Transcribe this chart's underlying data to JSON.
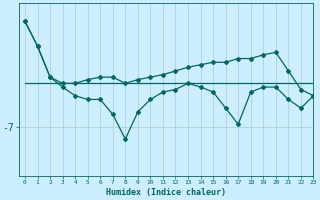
{
  "xlabel": "Humidex (Indice chaleur)",
  "background_color": "#cceeff",
  "line_color": "#006666",
  "grid_color": "#aacccc",
  "x": [
    0,
    1,
    2,
    3,
    4,
    5,
    6,
    7,
    8,
    9,
    10,
    11,
    12,
    13,
    14,
    15,
    16,
    17,
    18,
    19,
    20,
    21,
    22,
    23
  ],
  "y_oscillating": [
    1.5,
    -0.5,
    -3.0,
    -3.8,
    -4.5,
    -4.8,
    -4.8,
    -6.0,
    -8.0,
    -5.8,
    -4.8,
    -4.2,
    -4.0,
    -3.5,
    -3.8,
    -4.2,
    -5.5,
    -6.8,
    -4.2,
    -3.8,
    -3.8,
    -4.8,
    -5.5,
    -4.5
  ],
  "y_upper": [
    1.5,
    -0.5,
    -3.0,
    -3.5,
    -3.5,
    -3.2,
    -3.0,
    -3.0,
    -3.5,
    -3.2,
    -3.0,
    -2.8,
    -2.5,
    -2.2,
    -2.0,
    -1.8,
    -1.8,
    -1.5,
    -1.5,
    -1.2,
    -1.0,
    -2.5,
    -4.0,
    -4.5
  ],
  "y_flat": [
    -3.5,
    -3.5,
    -3.5,
    -3.5,
    -3.5,
    -3.5,
    -3.5,
    -3.5,
    -3.5,
    -3.5,
    -3.5,
    -3.5,
    -3.5,
    -3.5,
    -3.5,
    -3.5,
    -3.5,
    -3.5,
    -3.5,
    -3.5,
    -3.5,
    -3.5,
    -3.5,
    -3.5
  ],
  "ytick_labels": [
    "-7"
  ],
  "ytick_values": [
    -7
  ],
  "ylim": [
    -11,
    3
  ],
  "xlim": [
    -0.5,
    23
  ]
}
